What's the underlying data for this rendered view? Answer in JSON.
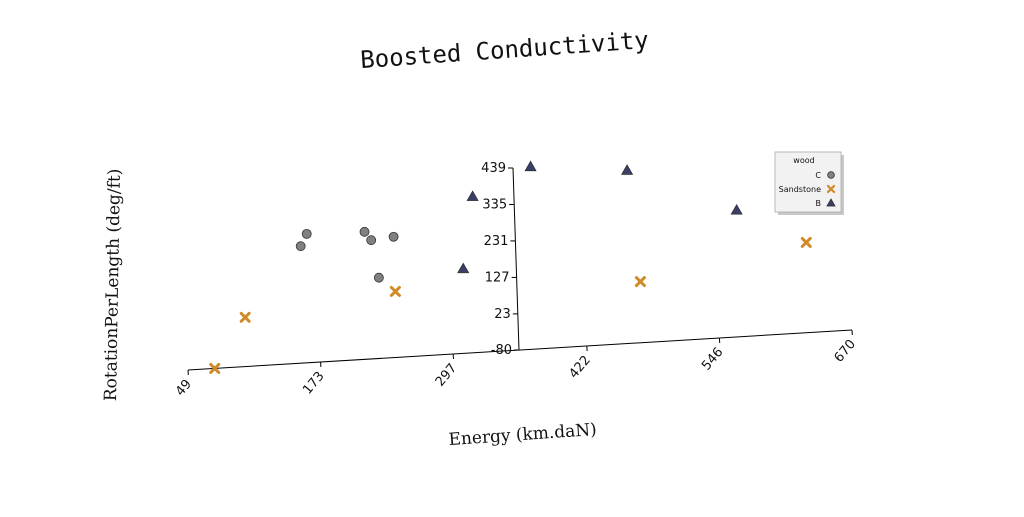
{
  "chart_data": {
    "type": "scatter",
    "title": "Boosted Conductivity",
    "xlabel": "Energy (km.daN)",
    "ylabel": "RotationPerLength (deg/ft)",
    "xlim": [
      49,
      670
    ],
    "ylim": [
      -80,
      439
    ],
    "xticks": [
      "49",
      "173",
      "297",
      "422",
      "546",
      "670"
    ],
    "yticks": [
      "439",
      "335",
      "231",
      "127",
      "23",
      "-80"
    ],
    "grid": false,
    "legend": {
      "title": "wood",
      "position": "top-right"
    },
    "series": [
      {
        "name": "C",
        "marker": "circle",
        "color": "#808080",
        "points": [
          [
            158,
            253
          ],
          [
            164,
            287
          ],
          [
            218,
            283
          ],
          [
            224,
            258
          ],
          [
            230,
            150
          ],
          [
            245,
            264
          ]
        ]
      },
      {
        "name": "Sandstone",
        "marker": "x",
        "color": "#d08a28",
        "points": [
          [
            74,
            -80
          ],
          [
            104,
            60
          ],
          [
            245,
            108
          ],
          [
            474,
            94
          ],
          [
            630,
            177
          ]
        ]
      },
      {
        "name": "B",
        "marker": "triangle",
        "color": "#3b3f66",
        "points": [
          [
            309,
            161
          ],
          [
            320,
            365
          ],
          [
            375,
            440
          ],
          [
            465,
            413
          ],
          [
            566,
            281
          ]
        ]
      }
    ]
  }
}
